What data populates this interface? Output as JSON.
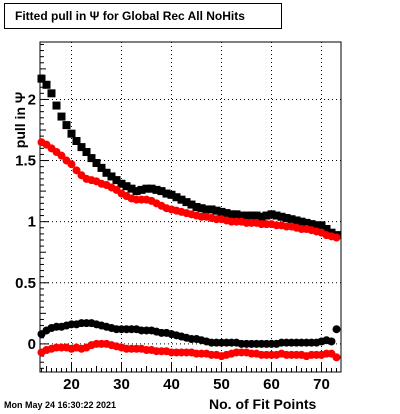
{
  "title": "Fitted pull in  Ψ  for Global Rec All NoHits",
  "footer": "Mon May 24 16:30:22 2021",
  "chart_data": {
    "type": "scatter",
    "title": "Fitted pull in  Ψ  for Global Rec All NoHits",
    "xlabel": "No. of Fit Points",
    "ylabel": "pull in  Ψ",
    "xlim": [
      13.7,
      73.9
    ],
    "ylim": [
      -0.23,
      2.47
    ],
    "xticks": [
      20,
      30,
      40,
      50,
      60,
      70
    ],
    "yticks": [
      0,
      0.5,
      1,
      1.5,
      2
    ],
    "ytick_labels": [
      "0",
      "0.5",
      "1",
      "1.5",
      "2"
    ],
    "xtick_labels": [
      "20",
      "30",
      "40",
      "50",
      "60",
      "70"
    ],
    "grid": true,
    "series": [
      {
        "marker": "square",
        "color": "#000000",
        "x": [
          14,
          15,
          16,
          17,
          18,
          19,
          20,
          21,
          22,
          23,
          24,
          25,
          26,
          27,
          28,
          29,
          30,
          31,
          32,
          33,
          34,
          35,
          36,
          37,
          38,
          39,
          40,
          41,
          42,
          43,
          44,
          45,
          46,
          47,
          48,
          49,
          50,
          51,
          52,
          53,
          54,
          55,
          56,
          57,
          58,
          59,
          60,
          61,
          62,
          63,
          64,
          65,
          66,
          67,
          68,
          69,
          70,
          71,
          72,
          73
        ],
        "y": [
          2.17,
          2.12,
          2.05,
          1.95,
          1.86,
          1.79,
          1.72,
          1.66,
          1.61,
          1.57,
          1.52,
          1.48,
          1.44,
          1.4,
          1.37,
          1.34,
          1.31,
          1.29,
          1.27,
          1.25,
          1.26,
          1.27,
          1.27,
          1.26,
          1.25,
          1.23,
          1.22,
          1.2,
          1.18,
          1.16,
          1.14,
          1.12,
          1.11,
          1.1,
          1.1,
          1.09,
          1.08,
          1.07,
          1.06,
          1.06,
          1.05,
          1.05,
          1.05,
          1.05,
          1.04,
          1.05,
          1.06,
          1.05,
          1.04,
          1.03,
          1.02,
          1.01,
          1.0,
          0.99,
          0.98,
          0.97,
          0.97,
          0.94,
          0.91,
          0.89
        ]
      },
      {
        "marker": "circle",
        "color": "#ff0000",
        "x": [
          14,
          15,
          16,
          17,
          18,
          19,
          20,
          21,
          22,
          23,
          24,
          25,
          26,
          27,
          28,
          29,
          30,
          31,
          32,
          33,
          34,
          35,
          36,
          37,
          38,
          39,
          40,
          41,
          42,
          43,
          44,
          45,
          46,
          47,
          48,
          49,
          50,
          51,
          52,
          53,
          54,
          55,
          56,
          57,
          58,
          59,
          60,
          61,
          62,
          63,
          64,
          65,
          66,
          67,
          68,
          69,
          70,
          71,
          72,
          73
        ],
        "y": [
          1.65,
          1.63,
          1.6,
          1.57,
          1.54,
          1.5,
          1.47,
          1.42,
          1.38,
          1.35,
          1.34,
          1.33,
          1.31,
          1.3,
          1.28,
          1.26,
          1.23,
          1.21,
          1.19,
          1.18,
          1.18,
          1.18,
          1.17,
          1.15,
          1.13,
          1.11,
          1.1,
          1.09,
          1.08,
          1.07,
          1.06,
          1.05,
          1.04,
          1.04,
          1.03,
          1.02,
          1.02,
          1.01,
          1.0,
          1.0,
          1.0,
          0.99,
          0.99,
          0.99,
          0.98,
          0.98,
          0.98,
          0.97,
          0.97,
          0.96,
          0.96,
          0.95,
          0.94,
          0.94,
          0.93,
          0.92,
          0.91,
          0.89,
          0.88,
          0.87
        ]
      },
      {
        "marker": "circle",
        "color": "#000000",
        "x": [
          14,
          15,
          16,
          17,
          18,
          19,
          20,
          21,
          22,
          23,
          24,
          25,
          26,
          27,
          28,
          29,
          30,
          31,
          32,
          33,
          34,
          35,
          36,
          37,
          38,
          39,
          40,
          41,
          42,
          43,
          44,
          45,
          46,
          47,
          48,
          49,
          50,
          51,
          52,
          53,
          54,
          55,
          56,
          57,
          58,
          59,
          60,
          61,
          62,
          63,
          64,
          65,
          66,
          67,
          68,
          69,
          70,
          71,
          72,
          73
        ],
        "y": [
          0.08,
          0.11,
          0.13,
          0.14,
          0.14,
          0.15,
          0.16,
          0.16,
          0.17,
          0.17,
          0.17,
          0.16,
          0.15,
          0.14,
          0.13,
          0.12,
          0.12,
          0.12,
          0.12,
          0.12,
          0.11,
          0.11,
          0.11,
          0.1,
          0.09,
          0.09,
          0.08,
          0.07,
          0.06,
          0.05,
          0.04,
          0.04,
          0.03,
          0.02,
          0.01,
          0.01,
          0.01,
          0.01,
          0.01,
          0.01,
          0.0,
          0.0,
          0.0,
          0.0,
          0.0,
          0.0,
          0.0,
          0.0,
          0.01,
          0.01,
          0.01,
          0.01,
          0.01,
          0.01,
          0.01,
          0.01,
          0.02,
          0.03,
          0.02,
          0.12
        ]
      },
      {
        "marker": "circle",
        "color": "#ff0000",
        "x": [
          14,
          15,
          16,
          17,
          18,
          19,
          20,
          21,
          22,
          23,
          24,
          25,
          26,
          27,
          28,
          29,
          30,
          31,
          32,
          33,
          34,
          35,
          36,
          37,
          38,
          39,
          40,
          41,
          42,
          43,
          44,
          45,
          46,
          47,
          48,
          49,
          50,
          51,
          52,
          53,
          54,
          55,
          56,
          57,
          58,
          59,
          60,
          61,
          62,
          63,
          64,
          65,
          66,
          67,
          68,
          69,
          70,
          71,
          72,
          73
        ],
        "y": [
          -0.07,
          -0.05,
          -0.04,
          -0.03,
          -0.03,
          -0.03,
          -0.04,
          -0.03,
          -0.04,
          -0.03,
          -0.01,
          0.0,
          0.0,
          0.0,
          -0.01,
          -0.02,
          -0.03,
          -0.04,
          -0.04,
          -0.04,
          -0.04,
          -0.05,
          -0.05,
          -0.06,
          -0.06,
          -0.06,
          -0.07,
          -0.07,
          -0.07,
          -0.07,
          -0.07,
          -0.08,
          -0.08,
          -0.08,
          -0.09,
          -0.09,
          -0.1,
          -0.09,
          -0.08,
          -0.07,
          -0.07,
          -0.07,
          -0.08,
          -0.08,
          -0.09,
          -0.09,
          -0.09,
          -0.09,
          -0.08,
          -0.09,
          -0.09,
          -0.09,
          -0.09,
          -0.1,
          -0.09,
          -0.09,
          -0.09,
          -0.08,
          -0.08,
          -0.11
        ]
      }
    ]
  }
}
